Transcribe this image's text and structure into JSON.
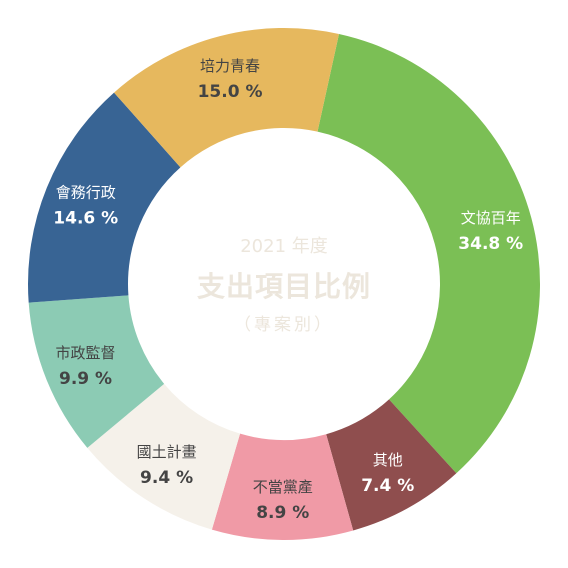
{
  "chart_data": {
    "type": "pie",
    "center": {
      "year": "2021 年度",
      "title": "支出項目比例",
      "subtitle": "（專案別）"
    },
    "slices": [
      {
        "label": "文協百年",
        "value": 34.8,
        "value_text": "34.8 %",
        "color": "#7bbf55",
        "text_color": "#ffffff"
      },
      {
        "label": "其他",
        "value": 7.4,
        "value_text": "7.4 %",
        "color": "#8f4e4e",
        "text_color": "#ffffff"
      },
      {
        "label": "不當黨產",
        "value": 8.9,
        "value_text": "8.9 %",
        "color": "#f09aa6",
        "text_color": "#444444"
      },
      {
        "label": "國土計畫",
        "value": 9.4,
        "value_text": "9.4 %",
        "color": "#f5f1ea",
        "text_color": "#444444"
      },
      {
        "label": "市政監督",
        "value": 9.9,
        "value_text": "9.9 %",
        "color": "#8ccbb4",
        "text_color": "#444444"
      },
      {
        "label": "會務行政",
        "value": 14.6,
        "value_text": "14.6 %",
        "color": "#386494",
        "text_color": "#ffffff"
      },
      {
        "label": "培力青春",
        "value": 15.0,
        "value_text": "15.0 %",
        "color": "#e6b85e",
        "text_color": "#444444"
      }
    ]
  }
}
